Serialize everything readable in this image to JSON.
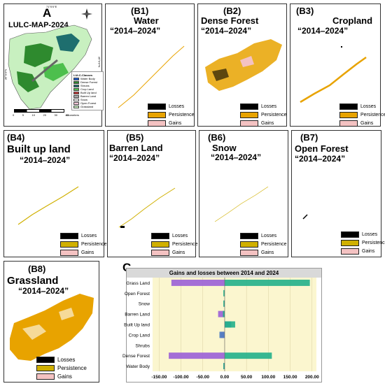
{
  "panelA": {
    "letter": "A",
    "title": "LULC-MAP-2024",
    "legend_title": "LULC-Classes",
    "classes": [
      {
        "name": "Water Body",
        "color": "#1f5fd6"
      },
      {
        "name": "Dense Forest",
        "color": "#2e8a2e"
      },
      {
        "name": "Shrubs",
        "color": "#1e6e6e"
      },
      {
        "name": "Crop Land",
        "color": "#4dbf4d"
      },
      {
        "name": "Built Up land",
        "color": "#c83a3a"
      },
      {
        "name": "Barren Land",
        "color": "#a9a9a9"
      },
      {
        "name": "Snow",
        "color": "#ffffff"
      },
      {
        "name": "Open Forest",
        "color": "#f5c6d8"
      },
      {
        "name": "Grassland",
        "color": "#c8f0c0"
      }
    ],
    "scale_ticks": [
      "0",
      "5",
      "10",
      "20",
      "30",
      "40"
    ],
    "scale_unit": "Kilometers",
    "coord_top": "71°0'0\"E",
    "coord_bottom": "71°0'0\"E",
    "coord_left": "35°0'0\"N",
    "coord_right": "35°0'0\"N"
  },
  "legend_items": {
    "losses": "Losses",
    "persistence": "Persistence",
    "gains": "Gains"
  },
  "change_colors": {
    "losses": "#000000",
    "persistence": "#e8a300",
    "persistence_alt": "#d0b000",
    "gains": "#f4c2c2"
  },
  "panels": [
    {
      "code": "(B1)",
      "name": "Water",
      "period": "“2014–2024”"
    },
    {
      "code": "(B2)",
      "name": "Dense Forest",
      "period": "“2014–2024”"
    },
    {
      "code": "(B3)",
      "name": "Cropland",
      "period": "“2014–2024”"
    },
    {
      "code": "(B4)",
      "name": "Built up land",
      "period": "“2014–2024”"
    },
    {
      "code": "(B5)",
      "name": "Barren Land",
      "period": "“2014–2024”"
    },
    {
      "code": "(B6)",
      "name": "Snow",
      "period": "“2014–2024”"
    },
    {
      "code": "(B7)",
      "name": "Open Forest",
      "period": "“2014–2024”"
    },
    {
      "code": "(B8)",
      "name": "Grassland",
      "period": "“2014–2024”"
    }
  ],
  "panelC": {
    "letter": "C"
  },
  "chart_data": {
    "type": "bar",
    "orientation": "horizontal",
    "title": "Gains and losses between 2014 and 2024",
    "categories": [
      "Grass Land",
      "Open Forest",
      "Snow",
      "Barren Land",
      "Built Up land",
      "Crop Land",
      "Shrubs",
      "Dense Forest",
      "Water Body"
    ],
    "series": [
      {
        "values": [
          -122,
          0,
          -2,
          -15,
          0,
          -10,
          0,
          -128,
          -3
        ],
        "color": "#9a5fd6"
      },
      {
        "values": [
          0,
          0,
          0,
          0,
          15,
          -12,
          0,
          0,
          0
        ],
        "color": "#4f7fc0"
      },
      {
        "values": [
          195,
          -3,
          -3,
          -4,
          24,
          0,
          0,
          108,
          -3
        ],
        "color": "#22b08a"
      }
    ],
    "xticks": [
      "-150.00",
      "-100.00",
      "-50.00",
      "0.00",
      "50.00",
      "100.00",
      "150.00",
      "200.00"
    ],
    "xlim": [
      -165,
      210
    ],
    "background": "#fbf6cf"
  }
}
